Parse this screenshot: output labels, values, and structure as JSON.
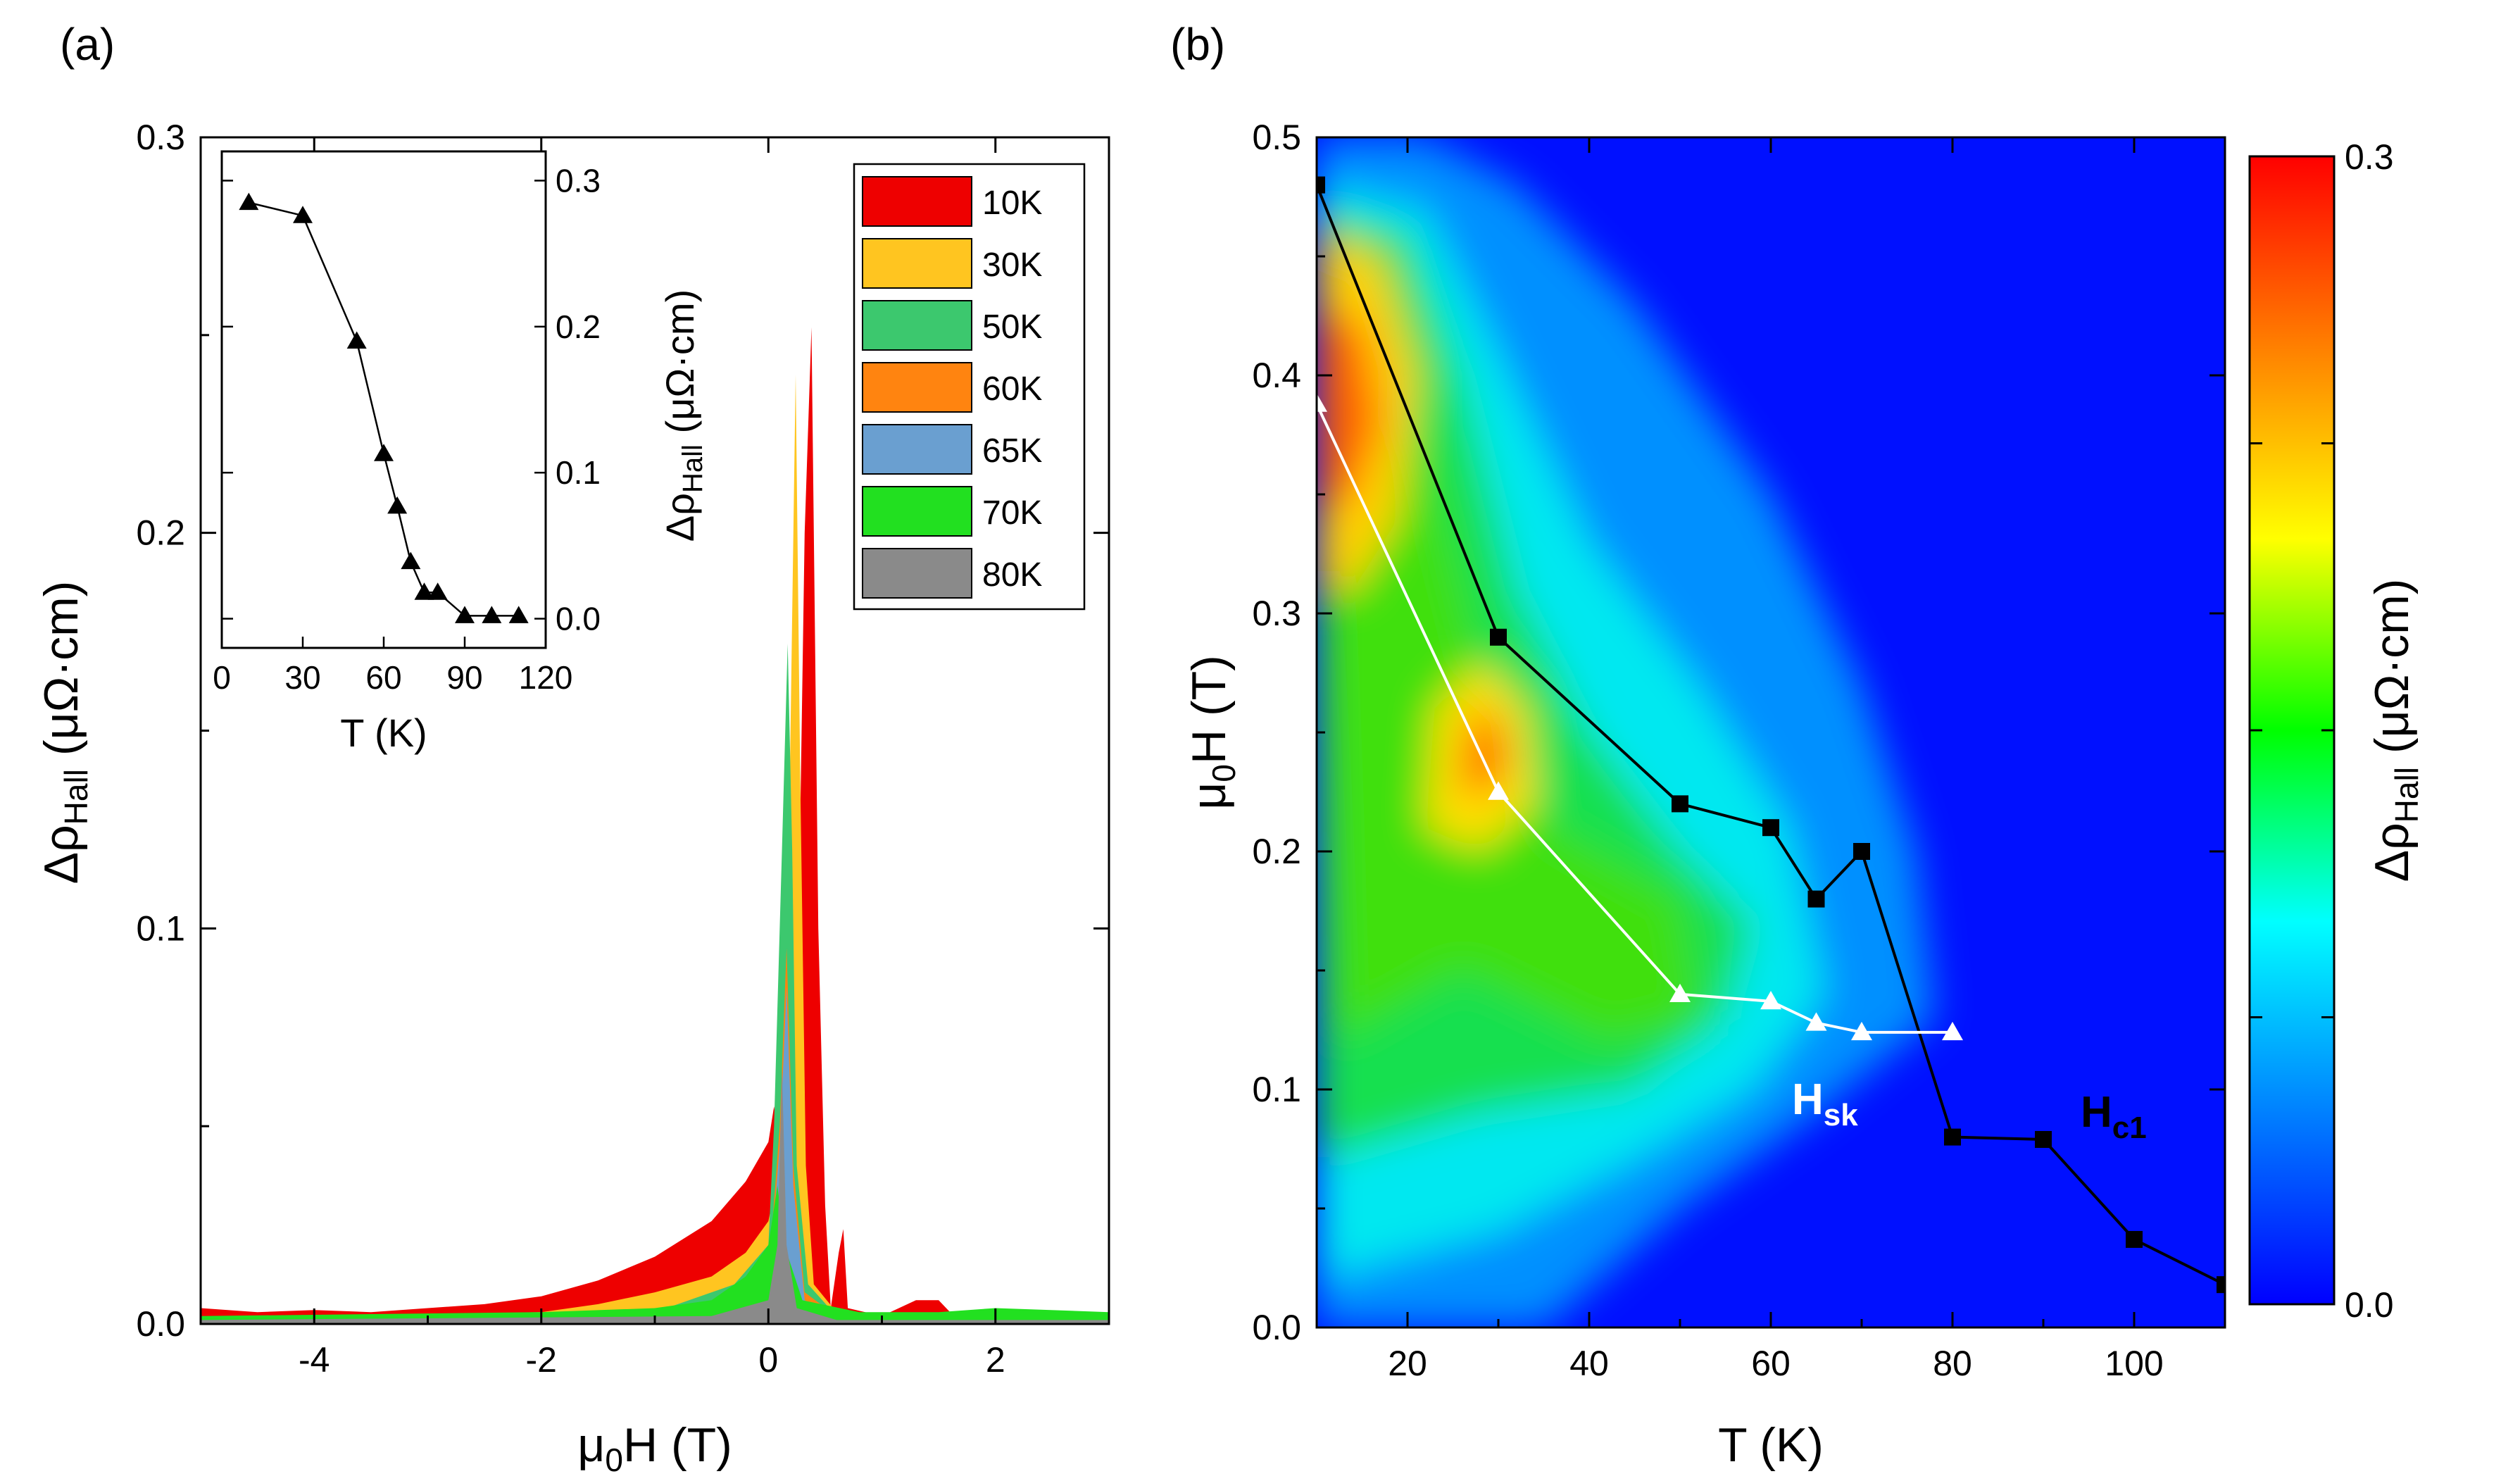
{
  "panel_labels": [
    "(a)",
    "(b)"
  ],
  "units": {
    "tesla": "(T)",
    "kelvin": "(K)",
    "resistivity": "(μΩ·cm)"
  },
  "chart_data": [
    {
      "id": "panel-a",
      "type": "area",
      "xlabel": "μ0H (T)",
      "ylabel": "ΔρHall (μΩ·cm)",
      "xlim": [
        -5,
        3
      ],
      "ylim": [
        0,
        0.3
      ],
      "xticks": [
        -4,
        -2,
        0,
        2
      ],
      "yticks": [
        0.0,
        0.1,
        0.2,
        0.3
      ],
      "ytick_labels": [
        "0.0",
        "0.1",
        "0.2",
        "0.3"
      ],
      "legend_position": "top-right",
      "series": [
        {
          "name": "10K",
          "color": "#ee0000",
          "points": [
            [
              -5,
              0.004
            ],
            [
              -4.5,
              0.003
            ],
            [
              -4,
              0.0035
            ],
            [
              -3.5,
              0.003
            ],
            [
              -3,
              0.004
            ],
            [
              -2.5,
              0.005
            ],
            [
              -2,
              0.007
            ],
            [
              -1.5,
              0.011
            ],
            [
              -1,
              0.017
            ],
            [
              -0.5,
              0.026
            ],
            [
              -0.2,
              0.036
            ],
            [
              0,
              0.046
            ],
            [
              0.05,
              0.055
            ],
            [
              0.15,
              0.035
            ],
            [
              0.25,
              0.07
            ],
            [
              0.32,
              0.2
            ],
            [
              0.38,
              0.252
            ],
            [
              0.44,
              0.1
            ],
            [
              0.5,
              0.03
            ],
            [
              0.55,
              0.004
            ],
            [
              0.62,
              0.018
            ],
            [
              0.66,
              0.024
            ],
            [
              0.7,
              0.004
            ],
            [
              1.0,
              0.002
            ],
            [
              1.15,
              0.004
            ],
            [
              1.3,
              0.006
            ],
            [
              1.5,
              0.006
            ],
            [
              1.6,
              0.003
            ],
            [
              2,
              0.002
            ],
            [
              3,
              0.001
            ]
          ]
        },
        {
          "name": "30K",
          "color": "#ffc520",
          "points": [
            [
              -5,
              0.001
            ],
            [
              -3,
              0.0015
            ],
            [
              -2,
              0.003
            ],
            [
              -1.5,
              0.005
            ],
            [
              -1,
              0.008
            ],
            [
              -0.5,
              0.012
            ],
            [
              -0.2,
              0.018
            ],
            [
              0,
              0.026
            ],
            [
              0.1,
              0.04
            ],
            [
              0.18,
              0.12
            ],
            [
              0.24,
              0.24
            ],
            [
              0.28,
              0.14
            ],
            [
              0.33,
              0.04
            ],
            [
              0.4,
              0.01
            ],
            [
              0.6,
              0.003
            ],
            [
              1,
              0.001
            ],
            [
              3,
              0.001
            ]
          ]
        },
        {
          "name": "50K",
          "color": "#3cc86e",
          "points": [
            [
              -5,
              0.001
            ],
            [
              -1,
              0.003
            ],
            [
              -0.3,
              0.01
            ],
            [
              0,
              0.02
            ],
            [
              0.05,
              0.05
            ],
            [
              0.12,
              0.12
            ],
            [
              0.17,
              0.172
            ],
            [
              0.21,
              0.12
            ],
            [
              0.25,
              0.04
            ],
            [
              0.35,
              0.01
            ],
            [
              0.6,
              0.002
            ],
            [
              3,
              0.001
            ]
          ]
        },
        {
          "name": "60K",
          "color": "#ff8410",
          "points": [
            [
              -5,
              0.001
            ],
            [
              -0.5,
              0.004
            ],
            [
              0,
              0.012
            ],
            [
              0.1,
              0.05
            ],
            [
              0.16,
              0.095
            ],
            [
              0.22,
              0.04
            ],
            [
              0.32,
              0.008
            ],
            [
              0.6,
              0.002
            ],
            [
              3,
              0.001
            ]
          ]
        },
        {
          "name": "65K",
          "color": "#6a9fd0",
          "points": [
            [
              -5,
              0.001
            ],
            [
              -0.5,
              0.003
            ],
            [
              0,
              0.01
            ],
            [
              0.1,
              0.045
            ],
            [
              0.16,
              0.085
            ],
            [
              0.22,
              0.035
            ],
            [
              0.32,
              0.006
            ],
            [
              0.6,
              0.002
            ],
            [
              3,
              0.001
            ]
          ]
        },
        {
          "name": "70K",
          "color": "#22e020",
          "points": [
            [
              -5,
              0.002
            ],
            [
              -2,
              0.003
            ],
            [
              -1,
              0.004
            ],
            [
              -0.5,
              0.006
            ],
            [
              -0.2,
              0.012
            ],
            [
              0,
              0.02
            ],
            [
              0.08,
              0.035
            ],
            [
              0.14,
              0.02
            ],
            [
              0.3,
              0.006
            ],
            [
              0.8,
              0.003
            ],
            [
              1.5,
              0.003
            ],
            [
              2,
              0.004
            ],
            [
              3,
              0.003
            ]
          ]
        },
        {
          "name": "80K",
          "color": "#8a8a8a",
          "points": [
            [
              -5,
              0.001
            ],
            [
              -0.5,
              0.002
            ],
            [
              0,
              0.006
            ],
            [
              0.08,
              0.02
            ],
            [
              0.12,
              0.065
            ],
            [
              0.16,
              0.02
            ],
            [
              0.25,
              0.004
            ],
            [
              0.6,
              0.001
            ],
            [
              3,
              0.001
            ]
          ]
        }
      ],
      "inset": {
        "type": "line",
        "xlabel": "T (K)",
        "ylabel": "ΔρHall (μΩ·cm)",
        "xlim": [
          0,
          120
        ],
        "ylim": [
          -0.02,
          0.32
        ],
        "xticks": [
          0,
          30,
          60,
          90,
          120
        ],
        "yticks": [
          0.0,
          0.1,
          0.2,
          0.3
        ],
        "ytick_labels": [
          "0.0",
          "0.1",
          "0.2",
          "0.3"
        ],
        "x": [
          10,
          30,
          50,
          60,
          65,
          70,
          75,
          80,
          90,
          100,
          110
        ],
        "y": [
          0.285,
          0.276,
          0.19,
          0.113,
          0.077,
          0.039,
          0.018,
          0.018,
          0.002,
          0.002,
          0.002
        ]
      }
    },
    {
      "id": "panel-b",
      "type": "heatmap",
      "xlabel": "T (K)",
      "ylabel": "μ0H (T)",
      "xlim": [
        10,
        110
      ],
      "ylim": [
        0,
        0.5
      ],
      "xticks": [
        20,
        40,
        60,
        80,
        100
      ],
      "yticks": [
        0.0,
        0.1,
        0.2,
        0.3,
        0.4,
        0.5
      ],
      "ytick_labels": [
        "0.0",
        "0.1",
        "0.2",
        "0.3",
        "0.4",
        "0.5"
      ],
      "colorbar": {
        "label": "ΔρHall (μΩ·cm)",
        "range": [
          0.0,
          0.3
        ],
        "tick_labels": [
          "0.0",
          "0.3"
        ],
        "colors": [
          "#0000ff",
          "#0080ff",
          "#00ffff",
          "#00ff00",
          "#ffff00",
          "#ff8000",
          "#ff0000"
        ]
      },
      "series": [
        {
          "name": "Hc1",
          "label_main": "H",
          "label_sub": "c1",
          "color": "#000000",
          "marker": "square",
          "x": [
            10,
            30,
            50,
            60,
            65,
            70,
            80,
            90,
            100,
            110
          ],
          "y": [
            0.48,
            0.29,
            0.22,
            0.21,
            0.18,
            0.2,
            0.08,
            0.079,
            0.037,
            0.018
          ]
        },
        {
          "name": "Hsk",
          "label_main": "H",
          "label_sub": "sk",
          "color": "#ffffff",
          "marker": "triangle",
          "x": [
            10,
            30,
            50,
            60,
            65,
            70,
            80
          ],
          "y": [
            0.388,
            0.225,
            0.14,
            0.137,
            0.128,
            0.124,
            0.124
          ]
        }
      ]
    }
  ]
}
